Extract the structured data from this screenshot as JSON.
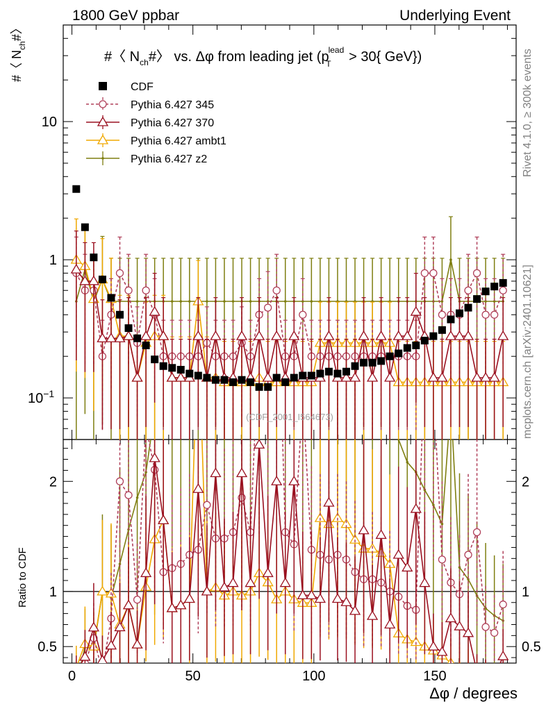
{
  "header": {
    "left": "1800 GeV ppbar",
    "right": "Underlying Event"
  },
  "side_text": {
    "rivet": "Rivet 4.1.0, ≥ 300k events",
    "mcplots": "mcplots.cern.ch [arXiv:2401.10621]"
  },
  "watermark": "(CDF_2001_I564673)",
  "chart_data": {
    "type": "scatter",
    "title_parts": {
      "prefix": "#〈 N",
      "prefix_sub": "ch",
      "mid": "#〉 vs. Δφ from leading jet  (p",
      "p_sup": "lead",
      "p_sub": "T",
      "suffix": " > 30{ GeV})"
    },
    "ylabel": {
      "main": "#〈 N",
      "sub": "ch",
      "end": "#〉"
    },
    "ratio_ylabel": "Ratio to CDF",
    "xlabel": "Δφ / degrees",
    "xlim": [
      -3.6,
      183.6
    ],
    "ylim": [
      0.05,
      50
    ],
    "yscale": "log",
    "ratio_ylim": [
      0.35,
      2.38
    ],
    "x_ticks": [
      0,
      50,
      100,
      150
    ],
    "y_ticks": [
      {
        "v": 0.1,
        "label": "10",
        "sup": "−1"
      },
      {
        "v": 1,
        "label": "1",
        "sup": ""
      },
      {
        "v": 10,
        "label": "10",
        "sup": ""
      }
    ],
    "ratio_ticks": [
      {
        "v": 0.5,
        "label": "0.5"
      },
      {
        "v": 1,
        "label": "1"
      },
      {
        "v": 2,
        "label": "2"
      }
    ],
    "ratio_right_ticks": [
      {
        "v": 0.5,
        "label": "0.5"
      },
      {
        "v": 1,
        "label": "1"
      },
      {
        "v": 2,
        "label": "2"
      }
    ],
    "legend": [
      {
        "name": "CDF",
        "style": "square",
        "color": "#000000"
      },
      {
        "name": "Pythia 6.427 345",
        "style": "circle-dashed",
        "color": "#b0405a"
      },
      {
        "name": "Pythia 6.427 370",
        "style": "triangle",
        "color": "#9a1020"
      },
      {
        "name": "Pythia 6.427 ambt1",
        "style": "triangle-orange",
        "color": "#f0a800"
      },
      {
        "name": "Pythia 6.427 z2",
        "style": "line-dot",
        "color": "#7e7e10"
      }
    ],
    "x": [
      1.8,
      5.4,
      9.0,
      12.6,
      16.2,
      19.8,
      23.4,
      27.0,
      30.6,
      34.2,
      37.8,
      41.4,
      45.0,
      48.6,
      52.2,
      55.8,
      59.4,
      63.0,
      66.6,
      70.2,
      73.8,
      77.4,
      81.0,
      84.6,
      88.2,
      91.8,
      95.4,
      99.0,
      102.6,
      106.2,
      109.8,
      113.4,
      117.0,
      120.6,
      124.2,
      127.8,
      131.4,
      135.0,
      138.6,
      142.2,
      145.8,
      149.4,
      153.0,
      156.6,
      160.2,
      163.8,
      167.4,
      171.0,
      174.6,
      178.2
    ],
    "series": [
      {
        "name": "CDF",
        "values": [
          3.25,
          1.72,
          1.04,
          0.72,
          0.53,
          0.4,
          0.32,
          0.27,
          0.24,
          0.19,
          0.17,
          0.165,
          0.16,
          0.15,
          0.145,
          0.14,
          0.135,
          0.135,
          0.13,
          0.135,
          0.13,
          0.12,
          0.12,
          0.14,
          0.13,
          0.14,
          0.145,
          0.145,
          0.15,
          0.155,
          0.15,
          0.155,
          0.17,
          0.18,
          0.18,
          0.185,
          0.2,
          0.21,
          0.23,
          0.24,
          0.26,
          0.28,
          0.31,
          0.37,
          0.41,
          0.45,
          0.52,
          0.59,
          0.64,
          0.68
        ]
      },
      {
        "name": "Pythia 6.427 345",
        "values": [
          0.8,
          0.6,
          0.6,
          0.2,
          0.4,
          0.8,
          0.6,
          0.25,
          0.6,
          0.4,
          0.2,
          0.2,
          0.2,
          0.2,
          0.2,
          0.25,
          0.2,
          0.2,
          0.2,
          0.25,
          0.2,
          0.4,
          0.45,
          0.6,
          0.2,
          0.2,
          0.4,
          0.2,
          0.2,
          0.2,
          0.2,
          0.2,
          0.2,
          0.2,
          0.2,
          0.2,
          0.2,
          0.2,
          0.2,
          0.2,
          0.8,
          0.8,
          0.4,
          0.4,
          0.4,
          0.6,
          0.8,
          0.4,
          0.4,
          0.6
        ]
      },
      {
        "name": "Pythia 6.427 370",
        "values": [
          0.85,
          0.7,
          0.7,
          0.27,
          0.27,
          0.27,
          0.28,
          0.14,
          0.28,
          0.42,
          0.28,
          0.14,
          0.14,
          0.14,
          0.28,
          0.14,
          0.28,
          0.14,
          0.14,
          0.28,
          0.14,
          0.28,
          0.14,
          0.28,
          0.14,
          0.28,
          0.14,
          0.14,
          0.14,
          0.28,
          0.14,
          0.14,
          0.14,
          0.28,
          0.14,
          0.28,
          0.14,
          0.28,
          0.28,
          0.42,
          0.28,
          0.14,
          0.14,
          0.28,
          0.28,
          0.28,
          0.14,
          0.14,
          0.14,
          0.28
        ]
      },
      {
        "name": "Pythia 6.427 ambt1",
        "values": [
          1.0,
          0.9,
          0.52,
          0.72,
          0.52,
          0.28,
          0.28,
          0.14,
          0.25,
          0.28,
          0.28,
          0.14,
          0.14,
          0.14,
          0.5,
          0.14,
          0.14,
          0.13,
          0.13,
          0.13,
          0.13,
          0.14,
          0.13,
          0.13,
          0.13,
          0.13,
          0.13,
          0.13,
          0.25,
          0.25,
          0.25,
          0.25,
          0.25,
          0.25,
          0.25,
          0.25,
          0.25,
          0.13,
          0.13,
          0.13,
          0.13,
          0.13,
          0.13,
          0.13,
          0.13,
          0.13,
          0.13,
          0.13,
          0.13,
          0.13
        ]
      },
      {
        "name": "Pythia 6.427 z2",
        "values": [
          0.5,
          0.85,
          0.5,
          0.72,
          0.5,
          0.5,
          0.5,
          0.5,
          0.5,
          0.5,
          0.5,
          0.5,
          0.5,
          0.5,
          0.5,
          0.5,
          0.5,
          0.5,
          0.5,
          0.5,
          0.5,
          0.5,
          0.5,
          0.5,
          0.5,
          0.5,
          0.5,
          0.5,
          0.5,
          0.5,
          0.5,
          0.5,
          0.5,
          0.5,
          0.5,
          0.5,
          0.5,
          0.5,
          0.5,
          0.5,
          0.5,
          0.5,
          0.5,
          1.0,
          0.5,
          0.5,
          0.5,
          0.5,
          0.5,
          0.5
        ]
      }
    ]
  }
}
